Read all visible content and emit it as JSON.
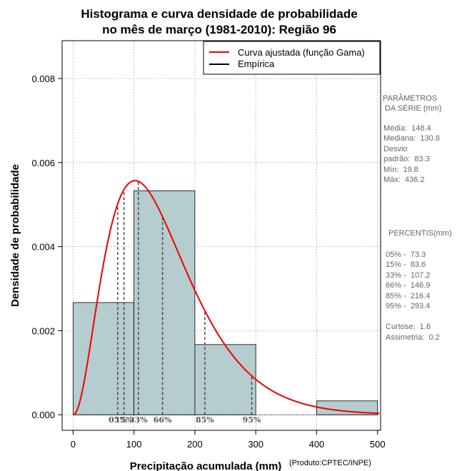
{
  "chart_data": {
    "type": "bar",
    "title": [
      "Histograma e curva densidade de probabilidade",
      "no mês de março (1981-2010): Região 96"
    ],
    "xlabel": "Precipitação acumulada (mm)",
    "ylabel": "Densidade de probabilidade",
    "credit": "(Produto:CPTEC/INPE)",
    "xlim": [
      -18,
      505
    ],
    "ylim": [
      -0.00037,
      0.0089
    ],
    "grid": true,
    "x_ticks": [
      0,
      100,
      200,
      300,
      400,
      500
    ],
    "y_ticks": [
      0.0,
      0.002,
      0.004,
      0.006,
      0.008
    ],
    "y_tick_labels": [
      "0.000",
      "0.002",
      "0.004",
      "0.006",
      "0.008"
    ],
    "bins": [
      {
        "start": 0,
        "end": 100,
        "density": 0.00267
      },
      {
        "start": 100,
        "end": 200,
        "density": 0.00533
      },
      {
        "start": 200,
        "end": 300,
        "density": 0.00167
      },
      {
        "start": 300,
        "end": 400,
        "density": 0.0
      },
      {
        "start": 400,
        "end": 500,
        "density": 0.00033
      }
    ],
    "bar_color": "#b5cdce",
    "curve": {
      "name": "Curva ajustada (função Gama)",
      "color": "#ee0000",
      "distribution": "gamma",
      "mean": 148.4,
      "std": 83.3
    },
    "legend": [
      {
        "label": "Curva ajustada (função Gama)",
        "color": "#ee0000"
      },
      {
        "label": "Empírica",
        "color": "#000000"
      }
    ],
    "legend_position": "top-right",
    "percentile_markers": [
      {
        "label": "05%",
        "value": 73.3
      },
      {
        "label": "15%",
        "value": 83.6
      },
      {
        "label": "33%",
        "value": 107.2
      },
      {
        "label": "66%",
        "value": 146.9
      },
      {
        "label": "85%",
        "value": 216.4
      },
      {
        "label": "95%",
        "value": 293.4
      }
    ]
  },
  "side_panel": {
    "params_heading": [
      "PARÂMETROS",
      " DA SÉRIE (mm)"
    ],
    "params": [
      "Média:  148.4",
      "Mediana:  130.8",
      "Desvio",
      "padrão:  83.3",
      "Mín:  19.8",
      "Máx:  436.2"
    ],
    "percentiles_heading": "PERCENTIS(mm)",
    "percentiles": [
      "05% -  73.3",
      "15% -  83.6",
      "33% -  107.2",
      "66% -  146.9",
      "85% -  216.4",
      "95% -  293.4"
    ],
    "stats": [
      "Curtose:  1.6",
      "Assimetria:  0.2"
    ]
  }
}
